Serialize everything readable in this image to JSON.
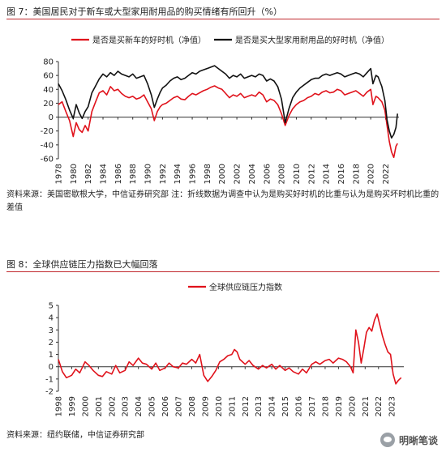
{
  "figure7": {
    "title": "图 7：美国居民对于新车或大型家用耐用品的购买情绪有所回升（%）",
    "source": "资料来源：美国密歇根大学，中信证券研究部    注：折线数据为调查中认为是购买好时机的比重与认为是购买坏时机比重的差值"
  },
  "figure8": {
    "title": "图 8：全球供应链压力指数已大幅回落",
    "source": "资料来源：纽约联储，中信证券研究部"
  },
  "watermark": {
    "text": "明晰笔谈"
  },
  "chart_data": [
    {
      "type": "line",
      "title": "",
      "xlabel": "",
      "ylabel": "",
      "ylim": [
        -60,
        80
      ],
      "y_ticks": [
        -60,
        -40,
        -20,
        0,
        20,
        40,
        60,
        80
      ],
      "x_tick_labels": [
        "1978",
        "1980",
        "1982",
        "1984",
        "1986",
        "1988",
        "1990",
        "1992",
        "1994",
        "1996",
        "1998",
        "2000",
        "2002",
        "2004",
        "2006",
        "2008",
        "2010",
        "2012",
        "2014",
        "2016",
        "2018",
        "2020",
        "2022"
      ],
      "grid": false,
      "legend_position": "top",
      "x_format": "year",
      "series": [
        {
          "name": "是否是买新车的好时机（净值）",
          "color": "#e0121b",
          "x": [
            1978.0,
            1978.5,
            1979.0,
            1979.5,
            1980.0,
            1980.4,
            1980.8,
            1981.2,
            1981.6,
            1982.0,
            1982.5,
            1983.0,
            1983.5,
            1984.0,
            1984.5,
            1985.0,
            1985.5,
            1986.0,
            1986.5,
            1987.0,
            1987.5,
            1988.0,
            1988.5,
            1989.0,
            1989.5,
            1990.0,
            1990.5,
            1990.9,
            1991.3,
            1991.7,
            1992.0,
            1992.5,
            1993.0,
            1993.5,
            1994.0,
            1994.5,
            1995.0,
            1995.5,
            1996.0,
            1996.5,
            1997.0,
            1997.5,
            1998.0,
            1998.5,
            1999.0,
            1999.5,
            2000.0,
            2000.5,
            2001.0,
            2001.5,
            2002.0,
            2002.5,
            2003.0,
            2003.5,
            2004.0,
            2004.5,
            2005.0,
            2005.5,
            2006.0,
            2006.5,
            2007.0,
            2007.5,
            2008.0,
            2008.5,
            2009.0,
            2009.5,
            2010.0,
            2010.5,
            2011.0,
            2011.5,
            2012.0,
            2012.5,
            2013.0,
            2013.5,
            2014.0,
            2014.5,
            2015.0,
            2015.5,
            2016.0,
            2016.5,
            2017.0,
            2017.5,
            2018.0,
            2018.5,
            2019.0,
            2019.5,
            2020.0,
            2020.3,
            2020.7,
            2021.0,
            2021.5,
            2021.9,
            2022.2,
            2022.5,
            2022.8,
            2023.1,
            2023.4,
            2023.6
          ],
          "y": [
            18,
            22,
            8,
            -5,
            -28,
            -8,
            -18,
            -22,
            -12,
            -20,
            8,
            22,
            35,
            38,
            32,
            44,
            38,
            40,
            34,
            30,
            28,
            30,
            26,
            28,
            32,
            22,
            12,
            -5,
            8,
            15,
            18,
            20,
            24,
            28,
            30,
            26,
            25,
            30,
            34,
            32,
            35,
            38,
            40,
            43,
            45,
            42,
            40,
            34,
            28,
            32,
            30,
            34,
            28,
            30,
            32,
            30,
            36,
            32,
            22,
            26,
            24,
            18,
            5,
            -12,
            2,
            12,
            18,
            22,
            24,
            28,
            30,
            34,
            32,
            36,
            38,
            35,
            36,
            40,
            38,
            32,
            34,
            36,
            38,
            34,
            30,
            36,
            40,
            18,
            30,
            28,
            22,
            10,
            -12,
            -35,
            -50,
            -58,
            -42,
            -38
          ]
        },
        {
          "name": "是否是买大型家用耐用品的好时机（净值）",
          "color": "#111111",
          "x": [
            1978.0,
            1978.5,
            1979.0,
            1979.5,
            1980.0,
            1980.4,
            1980.8,
            1981.2,
            1981.6,
            1982.0,
            1982.5,
            1983.0,
            1983.5,
            1984.0,
            1984.5,
            1985.0,
            1985.5,
            1986.0,
            1986.5,
            1987.0,
            1987.5,
            1988.0,
            1988.5,
            1989.0,
            1989.5,
            1990.0,
            1990.5,
            1990.9,
            1991.3,
            1991.7,
            1992.0,
            1992.5,
            1993.0,
            1993.5,
            1994.0,
            1994.5,
            1995.0,
            1995.5,
            1996.0,
            1996.5,
            1997.0,
            1997.5,
            1998.0,
            1998.5,
            1999.0,
            1999.5,
            2000.0,
            2000.5,
            2001.0,
            2001.5,
            2002.0,
            2002.5,
            2003.0,
            2003.5,
            2004.0,
            2004.5,
            2005.0,
            2005.5,
            2006.0,
            2006.5,
            2007.0,
            2007.5,
            2008.0,
            2008.5,
            2009.0,
            2009.5,
            2010.0,
            2010.5,
            2011.0,
            2011.5,
            2012.0,
            2012.5,
            2013.0,
            2013.5,
            2014.0,
            2014.5,
            2015.0,
            2015.5,
            2016.0,
            2016.5,
            2017.0,
            2017.5,
            2018.0,
            2018.5,
            2019.0,
            2019.5,
            2020.0,
            2020.3,
            2020.7,
            2021.0,
            2021.5,
            2021.9,
            2022.2,
            2022.5,
            2022.8,
            2023.1,
            2023.4,
            2023.6
          ],
          "y": [
            48,
            38,
            25,
            10,
            -2,
            18,
            6,
            -2,
            8,
            15,
            35,
            45,
            55,
            62,
            58,
            64,
            60,
            66,
            62,
            60,
            58,
            62,
            56,
            58,
            60,
            48,
            32,
            14,
            26,
            36,
            42,
            46,
            52,
            56,
            58,
            54,
            56,
            60,
            64,
            62,
            66,
            68,
            70,
            72,
            74,
            70,
            66,
            62,
            56,
            60,
            58,
            62,
            56,
            58,
            60,
            58,
            62,
            60,
            52,
            55,
            52,
            44,
            26,
            -8,
            12,
            28,
            36,
            42,
            46,
            50,
            54,
            56,
            56,
            60,
            62,
            60,
            62,
            64,
            62,
            58,
            60,
            62,
            64,
            62,
            58,
            64,
            70,
            48,
            60,
            58,
            44,
            24,
            -4,
            -20,
            -30,
            -25,
            -15,
            5
          ]
        }
      ]
    },
    {
      "type": "line",
      "title": "",
      "xlabel": "",
      "ylabel": "",
      "ylim": [
        -2,
        5
      ],
      "y_ticks": [
        -2,
        -1,
        0,
        1,
        2,
        3,
        4,
        5
      ],
      "x_tick_labels": [
        "1998",
        "1999",
        "2000",
        "2001",
        "2002",
        "2003",
        "2004",
        "2005",
        "2006",
        "2007",
        "2008",
        "2009",
        "2010",
        "2011",
        "2012",
        "2013",
        "2014",
        "2015",
        "2016",
        "2017",
        "2018",
        "2019",
        "2020",
        "2021",
        "2022",
        "2023"
      ],
      "grid": false,
      "legend_position": "top",
      "x_format": "year",
      "series": [
        {
          "name": "全球供应链压力指数",
          "color": "#e0121b",
          "x": [
            1998.0,
            1998.3,
            1998.6,
            1999.0,
            1999.3,
            1999.6,
            2000.0,
            2000.3,
            2000.6,
            2001.0,
            2001.3,
            2001.6,
            2002.0,
            2002.3,
            2002.6,
            2003.0,
            2003.3,
            2003.6,
            2004.0,
            2004.3,
            2004.6,
            2005.0,
            2005.3,
            2005.6,
            2006.0,
            2006.3,
            2006.6,
            2007.0,
            2007.3,
            2007.6,
            2008.0,
            2008.3,
            2008.6,
            2008.9,
            2009.2,
            2009.5,
            2009.8,
            2010.1,
            2010.4,
            2010.7,
            2011.0,
            2011.2,
            2011.4,
            2011.6,
            2012.0,
            2012.3,
            2012.6,
            2013.0,
            2013.3,
            2013.6,
            2014.0,
            2014.3,
            2014.6,
            2015.0,
            2015.3,
            2015.6,
            2016.0,
            2016.3,
            2016.6,
            2017.0,
            2017.3,
            2017.6,
            2018.0,
            2018.3,
            2018.6,
            2019.0,
            2019.3,
            2019.6,
            2019.9,
            2020.1,
            2020.3,
            2020.5,
            2020.7,
            2020.9,
            2021.1,
            2021.3,
            2021.5,
            2021.7,
            2021.9,
            2022.1,
            2022.3,
            2022.5,
            2022.7,
            2022.9,
            2023.1,
            2023.3,
            2023.5,
            2023.7
          ],
          "y": [
            0.6,
            -0.4,
            -0.9,
            -0.7,
            -0.2,
            -0.5,
            0.4,
            0.1,
            -0.3,
            -0.7,
            -0.8,
            -0.4,
            -0.6,
            0.1,
            -0.5,
            -0.3,
            0.4,
            0.1,
            0.7,
            0.3,
            0.2,
            -0.2,
            0.3,
            -0.3,
            -0.1,
            0.3,
            0.0,
            -0.1,
            0.3,
            0.2,
            0.6,
            0.3,
            1.0,
            -0.7,
            -1.2,
            -0.8,
            -0.3,
            0.4,
            0.6,
            0.9,
            1.0,
            1.4,
            1.2,
            0.6,
            0.2,
            0.5,
            0.1,
            -0.2,
            0.1,
            -0.1,
            0.2,
            -0.2,
            0.1,
            -0.3,
            -0.1,
            -0.4,
            -0.6,
            -0.2,
            -0.5,
            0.2,
            0.4,
            0.2,
            0.5,
            0.6,
            0.3,
            0.7,
            0.6,
            0.4,
            0.0,
            -0.5,
            3.0,
            2.0,
            0.3,
            1.5,
            2.8,
            3.2,
            2.9,
            3.8,
            4.3,
            3.4,
            2.5,
            1.8,
            1.2,
            1.0,
            -0.6,
            -1.4,
            -1.1,
            -0.9
          ]
        }
      ]
    }
  ]
}
